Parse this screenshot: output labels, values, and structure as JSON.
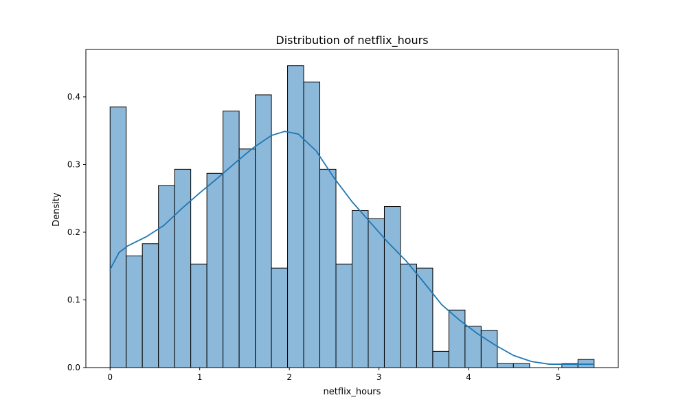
{
  "chart_data": {
    "type": "bar",
    "title": "Distribution of netflix_hours",
    "xlabel": "netflix_hours",
    "ylabel": "Density",
    "xlim": [
      -0.27,
      5.67
    ],
    "ylim": [
      0,
      0.47
    ],
    "xticks": [
      0,
      1,
      2,
      3,
      4,
      5
    ],
    "yticks": [
      0.0,
      0.1,
      0.2,
      0.3,
      0.4
    ],
    "ytick_labels": [
      "0.0",
      "0.1",
      "0.2",
      "0.3",
      "0.4"
    ],
    "grid": false,
    "legend": "none",
    "bin_start": 0,
    "bin_width": 0.18,
    "bar_values": [
      0.385,
      0.165,
      0.183,
      0.269,
      0.293,
      0.153,
      0.287,
      0.379,
      0.323,
      0.403,
      0.147,
      0.446,
      0.422,
      0.293,
      0.153,
      0.232,
      0.22,
      0.238,
      0.153,
      0.147,
      0.024,
      0.085,
      0.061,
      0.055,
      0.006,
      0.006,
      0.0,
      0.0,
      0.006,
      0.012
    ],
    "kde": {
      "x": [
        0.0,
        0.1,
        0.2,
        0.4,
        0.6,
        0.8,
        1.0,
        1.2,
        1.4,
        1.6,
        1.8,
        1.95,
        2.1,
        2.3,
        2.5,
        2.7,
        2.9,
        3.1,
        3.3,
        3.5,
        3.7,
        3.9,
        4.1,
        4.3,
        4.5,
        4.7,
        4.9,
        5.1,
        5.3,
        5.4
      ],
      "y": [
        0.145,
        0.17,
        0.18,
        0.193,
        0.21,
        0.235,
        0.258,
        0.28,
        0.303,
        0.325,
        0.343,
        0.349,
        0.345,
        0.32,
        0.28,
        0.245,
        0.215,
        0.185,
        0.158,
        0.126,
        0.093,
        0.07,
        0.05,
        0.033,
        0.018,
        0.009,
        0.005,
        0.005,
        0.005,
        0.005
      ]
    },
    "colors": {
      "bar_fill": "#8cb8d9",
      "bar_edge": "#000000",
      "kde_line": "#1f77b4"
    }
  }
}
